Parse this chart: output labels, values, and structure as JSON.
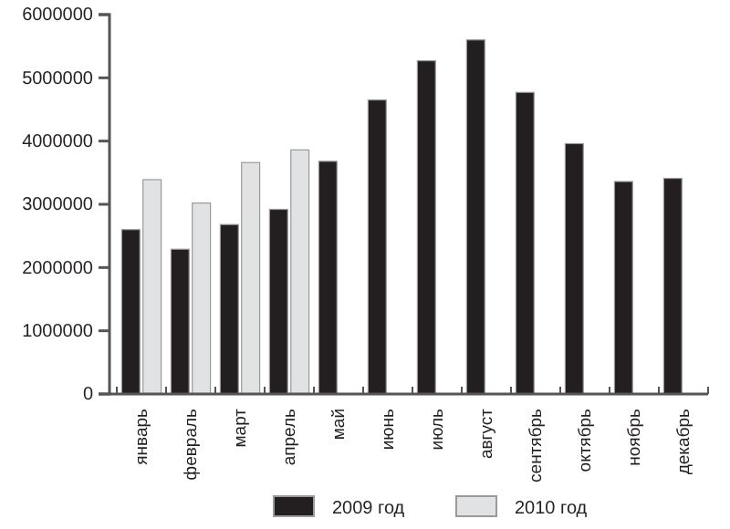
{
  "chart_data": {
    "type": "bar",
    "categories": [
      "январь",
      "февраль",
      "март",
      "апрель",
      "май",
      "июнь",
      "июль",
      "август",
      "сентябрь",
      "октябрь",
      "ноябрь",
      "декабрь"
    ],
    "series": [
      {
        "name": "2009 год",
        "color": "#231f20",
        "values": [
          2600000,
          2290000,
          2680000,
          2920000,
          3680000,
          4650000,
          5270000,
          5600000,
          4770000,
          3960000,
          3360000,
          3410000
        ]
      },
      {
        "name": "2010 год",
        "color": "#e1e2e4",
        "values": [
          3390000,
          3020000,
          3660000,
          3860000,
          null,
          null,
          null,
          null,
          null,
          null,
          null,
          null
        ]
      }
    ],
    "ylim": [
      0,
      6000000
    ],
    "yticks": [
      0,
      1000000,
      2000000,
      3000000,
      4000000,
      5000000,
      6000000
    ],
    "legend": "bottom"
  }
}
